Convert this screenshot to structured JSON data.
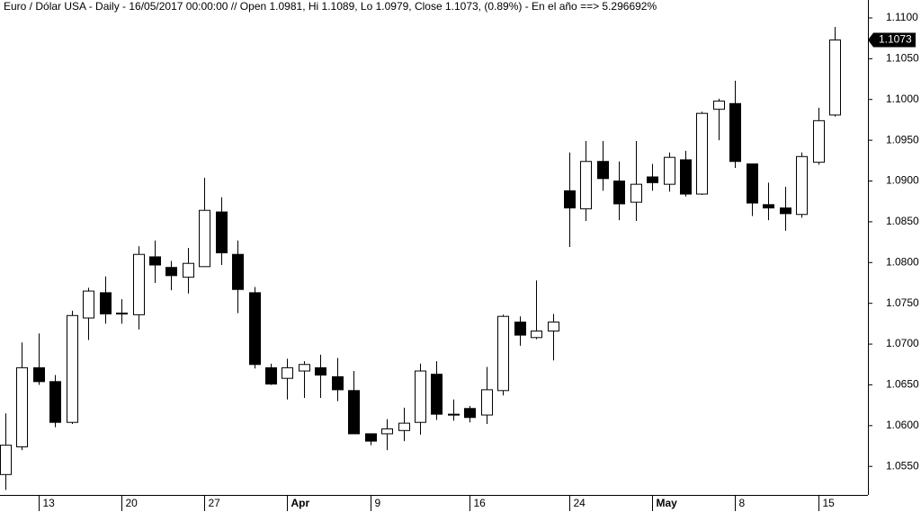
{
  "chart_data": {
    "type": "candlestick",
    "title": "Euro / Dólar USA - Daily - 16/05/2017 00:00:00 // Open 1.0981, Hi 1.1089, Lo 1.0979, Close 1.1073, (0.89%) - En el año ==> 5.296692%",
    "categories": [
      null,
      null,
      "13",
      null,
      null,
      null,
      null,
      "20",
      null,
      null,
      null,
      null,
      "27",
      null,
      null,
      null,
      null,
      "Apr",
      null,
      null,
      null,
      null,
      "9",
      null,
      null,
      null,
      null,
      null,
      "16",
      null,
      null,
      null,
      null,
      null,
      "24",
      null,
      null,
      null,
      null,
      "May",
      null,
      null,
      null,
      null,
      "8",
      null,
      null,
      null,
      null,
      "15",
      null
    ],
    "open": [
      1.054,
      1.0574,
      1.0671,
      1.0654,
      1.0604,
      1.0732,
      1.0763,
      1.0738,
      1.0736,
      1.0807,
      1.0794,
      1.0782,
      1.0795,
      1.0862,
      1.081,
      1.0763,
      1.0671,
      1.0658,
      1.0667,
      1.0671,
      1.066,
      1.0643,
      1.059,
      1.059,
      1.0594,
      1.0604,
      1.0663,
      1.0614,
      1.0621,
      1.0613,
      1.0643,
      1.0727,
      1.0708,
      1.0716,
      1.0888,
      1.0866,
      1.0924,
      1.09,
      1.0874,
      1.0905,
      1.0896,
      1.0926,
      1.0884,
      1.0988,
      1.0995,
      1.0921,
      1.0871,
      1.0867,
      1.0859,
      1.0923,
      1.0981
    ],
    "high": [
      1.0615,
      1.0702,
      1.0713,
      1.0662,
      1.0741,
      1.0769,
      1.0783,
      1.0755,
      1.082,
      1.0827,
      1.0802,
      1.0818,
      1.0904,
      1.088,
      1.0827,
      1.077,
      1.0676,
      1.0682,
      1.0679,
      1.0687,
      1.0683,
      1.0667,
      1.059,
      1.0608,
      1.0622,
      1.0676,
      1.0679,
      1.0632,
      1.0624,
      1.0672,
      1.0736,
      1.0734,
      1.0778,
      1.0737,
      1.0935,
      1.0949,
      1.0949,
      1.0924,
      1.0949,
      1.0921,
      1.0935,
      1.0937,
      1.0985,
      1.1001,
      1.1023,
      1.0921,
      1.0898,
      1.0893,
      1.0935,
      1.099,
      1.1089
    ],
    "low": [
      1.0521,
      1.057,
      1.065,
      1.0598,
      1.0602,
      1.0705,
      1.0725,
      1.0725,
      1.0718,
      1.0775,
      1.0766,
      1.0762,
      1.0795,
      1.0797,
      1.0738,
      1.067,
      1.065,
      1.0632,
      1.0634,
      1.0634,
      1.063,
      1.059,
      1.0576,
      1.057,
      1.0581,
      1.0589,
      1.0607,
      1.0606,
      1.0604,
      1.0602,
      1.0637,
      1.0698,
      1.0706,
      1.068,
      1.0819,
      1.0851,
      1.0888,
      1.0852,
      1.0851,
      1.0888,
      1.0887,
      1.0881,
      1.0883,
      1.095,
      1.0916,
      1.0857,
      1.0852,
      1.0839,
      1.0855,
      1.092,
      1.0979
    ],
    "close": [
      1.0576,
      1.0671,
      1.0654,
      1.0604,
      1.0735,
      1.0765,
      1.0737,
      1.0737,
      1.081,
      1.0797,
      1.0784,
      1.0799,
      1.0864,
      1.0812,
      1.0767,
      1.0675,
      1.0651,
      1.0671,
      1.0675,
      1.0662,
      1.0644,
      1.059,
      1.0581,
      1.0596,
      1.0603,
      1.0667,
      1.0614,
      1.0613,
      1.061,
      1.0644,
      1.0734,
      1.0711,
      1.0716,
      1.0727,
      1.0867,
      1.0924,
      1.0903,
      1.0872,
      1.0896,
      1.0898,
      1.0929,
      1.0884,
      1.0983,
      1.0998,
      1.0924,
      1.0873,
      1.0867,
      1.086,
      1.093,
      1.0974,
      1.1073
    ],
    "up_color": "#ffffff",
    "down_color": "#000000",
    "ylim": [
      1.0515,
      1.1122
    ],
    "yticks": [
      {
        "value": 1.055,
        "label": "1.0550"
      },
      {
        "value": 1.06,
        "label": "1.0600"
      },
      {
        "value": 1.065,
        "label": "1.0650"
      },
      {
        "value": 1.07,
        "label": "1.0700"
      },
      {
        "value": 1.075,
        "label": "1.0750"
      },
      {
        "value": 1.08,
        "label": "1.0800"
      },
      {
        "value": 1.085,
        "label": "1.0850"
      },
      {
        "value": 1.09,
        "label": "1.0900"
      },
      {
        "value": 1.095,
        "label": "1.0950"
      },
      {
        "value": 1.1,
        "label": "1.1000"
      },
      {
        "value": 1.105,
        "label": "1.1050"
      },
      {
        "value": 1.11,
        "label": "1.1100"
      }
    ],
    "grid": false
  }
}
